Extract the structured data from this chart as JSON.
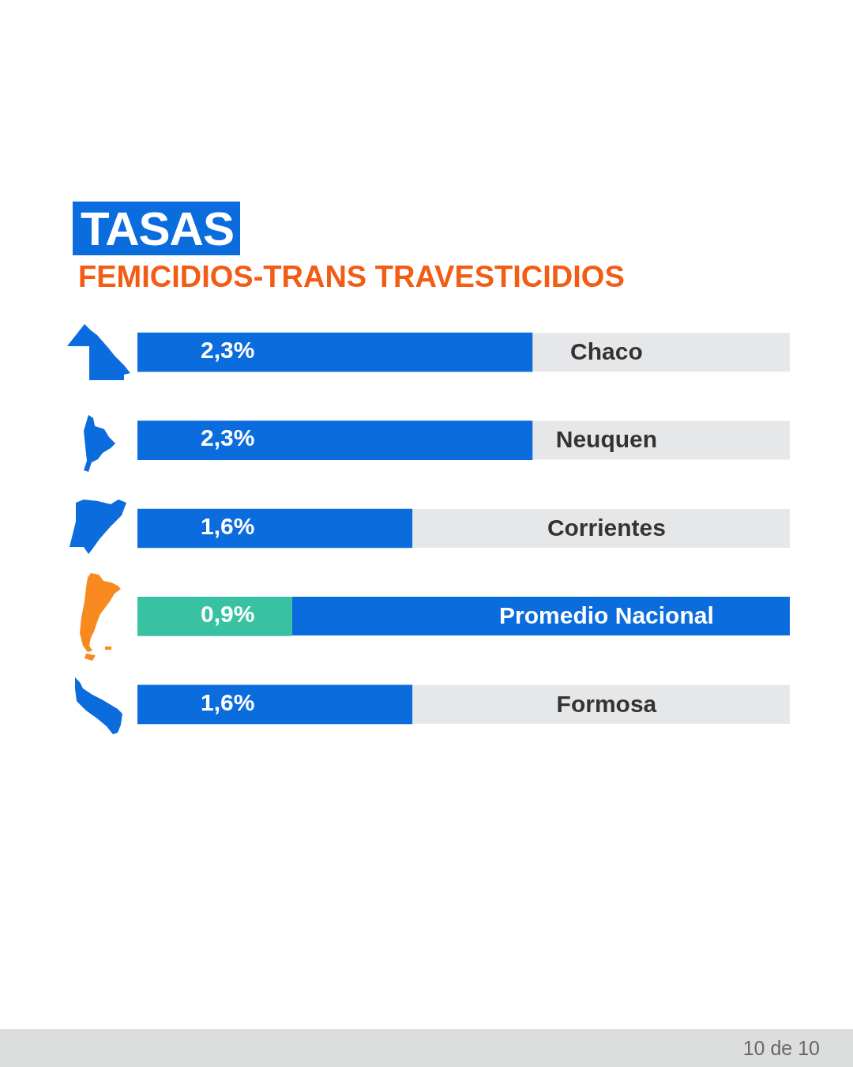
{
  "chart_data": {
    "type": "bar",
    "orientation": "horizontal",
    "title": "TASAS",
    "subtitle": "FEMICIDIOS-TRANS TRAVESTICIDIOS",
    "categories": [
      "Chaco",
      "Neuquen",
      "Corrientes",
      "Promedio Nacional",
      "Formosa"
    ],
    "values": [
      2.3,
      2.3,
      1.6,
      0.9,
      1.6
    ],
    "colors": [
      "#0a6cdd",
      "#0a6cdd",
      "#0a6cdd",
      "#38c2a2",
      "#0a6cdd"
    ],
    "value_labels": [
      "2,3%",
      "2,3%",
      "1,6%",
      "0,9%",
      "1,6%"
    ],
    "xlim": [
      0,
      3.8
    ],
    "tick_labels": "y",
    "annotations": [
      "10 de 10"
    ]
  }
}
